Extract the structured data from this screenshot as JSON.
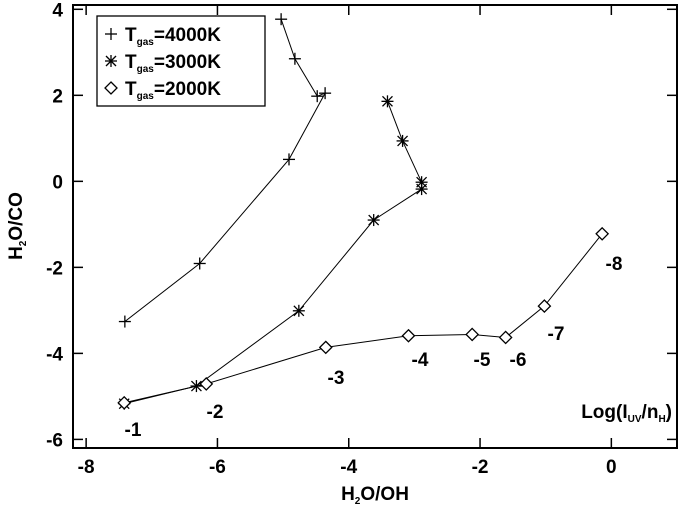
{
  "chart_data": {
    "type": "line",
    "xlabel": "H2O/OH",
    "ylabel": "H2O/CO",
    "xlim": [
      -8.2,
      1.0
    ],
    "ylim": [
      -6.2,
      4.1
    ],
    "xticks": [
      -8,
      -6,
      -4,
      -2,
      0
    ],
    "yticks": [
      -6,
      -4,
      -2,
      0,
      2,
      4
    ],
    "legend": "upper left",
    "series": [
      {
        "name": "Tgas=4000K",
        "marker": "plus",
        "color": "#000000",
        "x": [
          -7.41,
          -6.27,
          -4.91,
          -4.36,
          -4.48,
          -4.82,
          -5.03
        ],
        "values": [
          -3.26,
          -1.91,
          0.51,
          2.05,
          1.98,
          2.85,
          3.77
        ]
      },
      {
        "name": "Tgas=3000K",
        "marker": "asterisk",
        "color": "#000000",
        "x": [
          -7.42,
          -6.32,
          -4.76,
          -3.62,
          -2.89,
          -2.89,
          -3.18,
          -3.41
        ],
        "values": [
          -5.17,
          -4.76,
          -3.01,
          -0.9,
          -0.18,
          -0.02,
          0.94,
          1.86
        ]
      },
      {
        "name": "Tgas=2000K",
        "marker": "diamond",
        "color": "#000000",
        "x": [
          -7.42,
          -6.17,
          -4.35,
          -3.09,
          -2.12,
          -1.61,
          -1.02,
          -0.14
        ],
        "values": [
          -5.15,
          -4.71,
          -3.86,
          -3.59,
          -3.56,
          -3.63,
          -2.9,
          -1.22
        ]
      }
    ],
    "annotations": [
      "-1",
      "-2",
      "-3",
      "-4",
      "-5",
      "-6",
      "-7",
      "-8",
      "Log(IUV/nH)"
    ]
  }
}
